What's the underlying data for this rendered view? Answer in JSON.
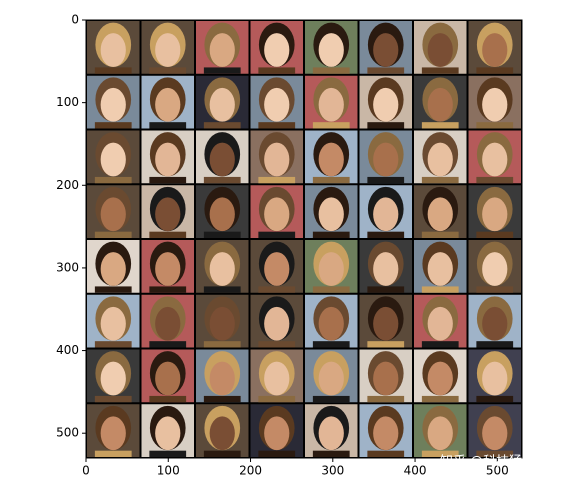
{
  "chart_data": {
    "type": "image",
    "xlim": [
      0,
      530
    ],
    "ylim": [
      530,
      0
    ],
    "xticks": [
      0,
      100,
      200,
      300,
      400,
      500
    ],
    "yticks": [
      0,
      100,
      200,
      300,
      400,
      500
    ],
    "watermark": "知乎 @科技猛兽"
  }
}
